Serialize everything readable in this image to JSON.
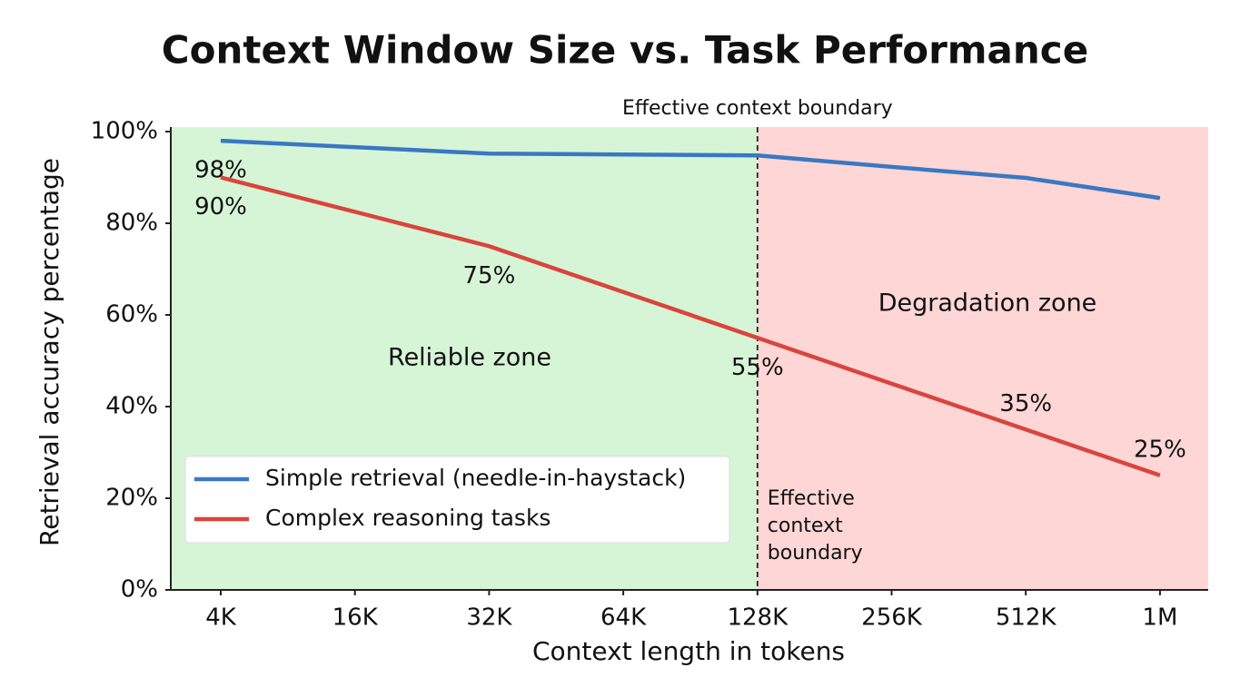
{
  "chart_data": {
    "type": "line",
    "title": "Context Window Size vs. Task Performance",
    "x_label": "Context length in tokens",
    "y_label": "Retrieval accuracy percentage",
    "categories": [
      "4K",
      "16K",
      "32K",
      "64K",
      "128K",
      "256K",
      "512K",
      "1M"
    ],
    "series": [
      {
        "name": "Simple retrieval (needle-in-haystack)",
        "color": "#3a78c3",
        "values": [
          98,
          96.6,
          95.2,
          95,
          94.8,
          92.3,
          89.9,
          85.5
        ],
        "value_labels": [
          "98%",
          null,
          null,
          null,
          null,
          null,
          null,
          null
        ]
      },
      {
        "name": "Complex reasoning tasks",
        "color": "#d9453d",
        "values": [
          90,
          82.5,
          75,
          65,
          55,
          45,
          35,
          25
        ],
        "value_labels": [
          "90%",
          null,
          "75%",
          null,
          "55%",
          null,
          "35%",
          "25%"
        ]
      }
    ],
    "ylim": [
      0,
      100
    ],
    "yticks": [
      {
        "value": 0,
        "label": "0%"
      },
      {
        "value": 20,
        "label": "20%"
      },
      {
        "value": 40,
        "label": "40%"
      },
      {
        "value": 60,
        "label": "60%"
      },
      {
        "value": 80,
        "label": "80%"
      },
      {
        "value": 100,
        "label": "100%"
      }
    ],
    "legend": "lower left",
    "boundary_index": 4,
    "boundary_top_label": "Effective context boundary",
    "boundary_side_label": [
      "Effective",
      "context",
      "boundary"
    ],
    "zones": [
      {
        "label": "Reliable zone",
        "color": "#d6f5d6"
      },
      {
        "label": "Degradation zone",
        "color": "#ffd6d6"
      }
    ]
  }
}
